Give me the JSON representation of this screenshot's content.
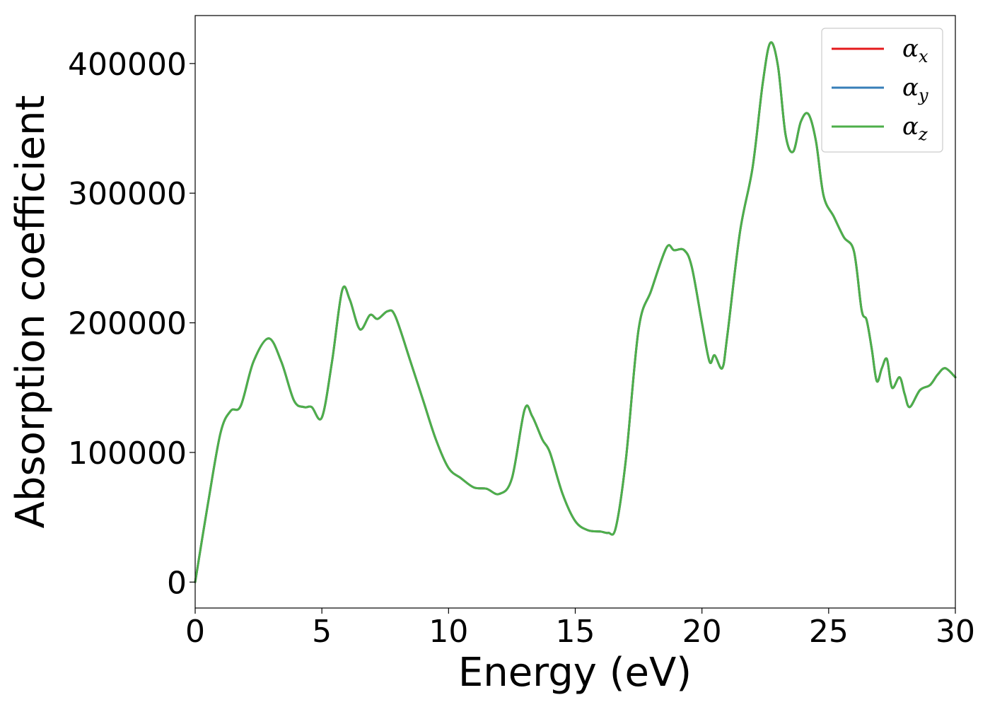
{
  "chart_data": {
    "type": "line",
    "title": "",
    "xlabel": "Energy (eV)",
    "ylabel": "Absorption coefficient",
    "xlim": [
      0,
      30
    ],
    "ylim": [
      -20000,
      437000
    ],
    "x_ticks": [
      0,
      5,
      10,
      15,
      20,
      25,
      30
    ],
    "y_ticks": [
      0,
      100000,
      200000,
      300000,
      400000
    ],
    "grid": false,
    "legend_position": "top-right",
    "series": [
      {
        "name": "αx",
        "name_base": "α",
        "name_sub": "x",
        "color": "#e41a1c",
        "x": [
          0,
          0.5,
          1,
          1.4,
          1.8,
          2.3,
          2.9,
          3.4,
          3.9,
          4.3,
          4.6,
          5.0,
          5.4,
          5.8,
          6.1,
          6.5,
          6.9,
          7.2,
          7.6,
          7.9,
          8.5,
          9.0,
          9.5,
          10.0,
          10.5,
          11.0,
          11.5,
          12.0,
          12.5,
          13.0,
          13.3,
          13.7,
          14.0,
          14.5,
          15.0,
          15.5,
          16.0,
          16.3,
          16.6,
          17.0,
          17.5,
          18.0,
          18.6,
          18.9,
          19.3,
          19.6,
          20.0,
          20.3,
          20.5,
          20.8,
          21.0,
          21.5,
          22.0,
          22.4,
          22.7,
          23.0,
          23.3,
          23.6,
          23.9,
          24.2,
          24.5,
          24.8,
          25.2,
          25.6,
          26.0,
          26.3,
          26.5,
          26.7,
          26.9,
          27.1,
          27.3,
          27.5,
          27.8,
          28.0,
          28.2,
          28.6,
          29.0,
          29.3,
          29.6,
          30.0
        ],
        "y": [
          0,
          60000,
          115000,
          132000,
          136000,
          170000,
          188000,
          170000,
          140000,
          135000,
          135000,
          127000,
          170000,
          225000,
          218000,
          195000,
          206000,
          203000,
          209000,
          205000,
          170000,
          140000,
          110000,
          88000,
          80000,
          73000,
          72000,
          68000,
          80000,
          133000,
          128000,
          110000,
          100000,
          68000,
          47000,
          40000,
          39000,
          38000,
          42000,
          95000,
          195000,
          225000,
          258000,
          256000,
          256000,
          243000,
          200000,
          170000,
          175000,
          165000,
          190000,
          270000,
          320000,
          385000,
          416000,
          398000,
          345000,
          332000,
          355000,
          361000,
          340000,
          298000,
          282000,
          266000,
          255000,
          210000,
          202000,
          180000,
          155000,
          165000,
          172000,
          150000,
          158000,
          145000,
          135000,
          148000,
          152000,
          160000,
          165000,
          158000
        ]
      },
      {
        "name": "αy",
        "name_base": "α",
        "name_sub": "y",
        "color": "#377eb8",
        "x": [
          0,
          0.5,
          1,
          1.4,
          1.8,
          2.3,
          2.9,
          3.4,
          3.9,
          4.3,
          4.6,
          5.0,
          5.4,
          5.8,
          6.1,
          6.5,
          6.9,
          7.2,
          7.6,
          7.9,
          8.5,
          9.0,
          9.5,
          10.0,
          10.5,
          11.0,
          11.5,
          12.0,
          12.5,
          13.0,
          13.3,
          13.7,
          14.0,
          14.5,
          15.0,
          15.5,
          16.0,
          16.3,
          16.6,
          17.0,
          17.5,
          18.0,
          18.6,
          18.9,
          19.3,
          19.6,
          20.0,
          20.3,
          20.5,
          20.8,
          21.0,
          21.5,
          22.0,
          22.4,
          22.7,
          23.0,
          23.3,
          23.6,
          23.9,
          24.2,
          24.5,
          24.8,
          25.2,
          25.6,
          26.0,
          26.3,
          26.5,
          26.7,
          26.9,
          27.1,
          27.3,
          27.5,
          27.8,
          28.0,
          28.2,
          28.6,
          29.0,
          29.3,
          29.6,
          30.0
        ],
        "y": [
          0,
          60000,
          115000,
          132000,
          136000,
          170000,
          188000,
          170000,
          140000,
          135000,
          135000,
          127000,
          170000,
          225000,
          218000,
          195000,
          206000,
          203000,
          209000,
          205000,
          170000,
          140000,
          110000,
          88000,
          80000,
          73000,
          72000,
          68000,
          80000,
          133000,
          128000,
          110000,
          100000,
          68000,
          47000,
          40000,
          39000,
          38000,
          42000,
          95000,
          195000,
          225000,
          258000,
          256000,
          256000,
          243000,
          200000,
          170000,
          175000,
          165000,
          190000,
          270000,
          320000,
          385000,
          416000,
          398000,
          345000,
          332000,
          355000,
          361000,
          340000,
          298000,
          282000,
          266000,
          255000,
          210000,
          202000,
          180000,
          155000,
          165000,
          172000,
          150000,
          158000,
          145000,
          135000,
          148000,
          152000,
          160000,
          165000,
          158000
        ]
      },
      {
        "name": "αz",
        "name_base": "α",
        "name_sub": "z",
        "color": "#4daf4a",
        "x": [
          0,
          0.5,
          1,
          1.4,
          1.8,
          2.3,
          2.9,
          3.4,
          3.9,
          4.3,
          4.6,
          5.0,
          5.4,
          5.8,
          6.1,
          6.5,
          6.9,
          7.2,
          7.6,
          7.9,
          8.5,
          9.0,
          9.5,
          10.0,
          10.5,
          11.0,
          11.5,
          12.0,
          12.5,
          13.0,
          13.3,
          13.7,
          14.0,
          14.5,
          15.0,
          15.5,
          16.0,
          16.3,
          16.6,
          17.0,
          17.5,
          18.0,
          18.6,
          18.9,
          19.3,
          19.6,
          20.0,
          20.3,
          20.5,
          20.8,
          21.0,
          21.5,
          22.0,
          22.4,
          22.7,
          23.0,
          23.3,
          23.6,
          23.9,
          24.2,
          24.5,
          24.8,
          25.2,
          25.6,
          26.0,
          26.3,
          26.5,
          26.7,
          26.9,
          27.1,
          27.3,
          27.5,
          27.8,
          28.0,
          28.2,
          28.6,
          29.0,
          29.3,
          29.6,
          30.0
        ],
        "y": [
          0,
          60000,
          115000,
          132000,
          136000,
          170000,
          188000,
          170000,
          140000,
          135000,
          135000,
          127000,
          170000,
          225000,
          218000,
          195000,
          206000,
          203000,
          209000,
          205000,
          170000,
          140000,
          110000,
          88000,
          80000,
          73000,
          72000,
          68000,
          80000,
          133000,
          128000,
          110000,
          100000,
          68000,
          47000,
          40000,
          39000,
          38000,
          42000,
          95000,
          195000,
          225000,
          258000,
          256000,
          256000,
          243000,
          200000,
          170000,
          175000,
          165000,
          190000,
          270000,
          320000,
          385000,
          416000,
          398000,
          345000,
          332000,
          355000,
          361000,
          340000,
          298000,
          282000,
          266000,
          255000,
          210000,
          202000,
          180000,
          155000,
          165000,
          172000,
          150000,
          158000,
          145000,
          135000,
          148000,
          152000,
          160000,
          165000,
          158000
        ]
      }
    ]
  }
}
